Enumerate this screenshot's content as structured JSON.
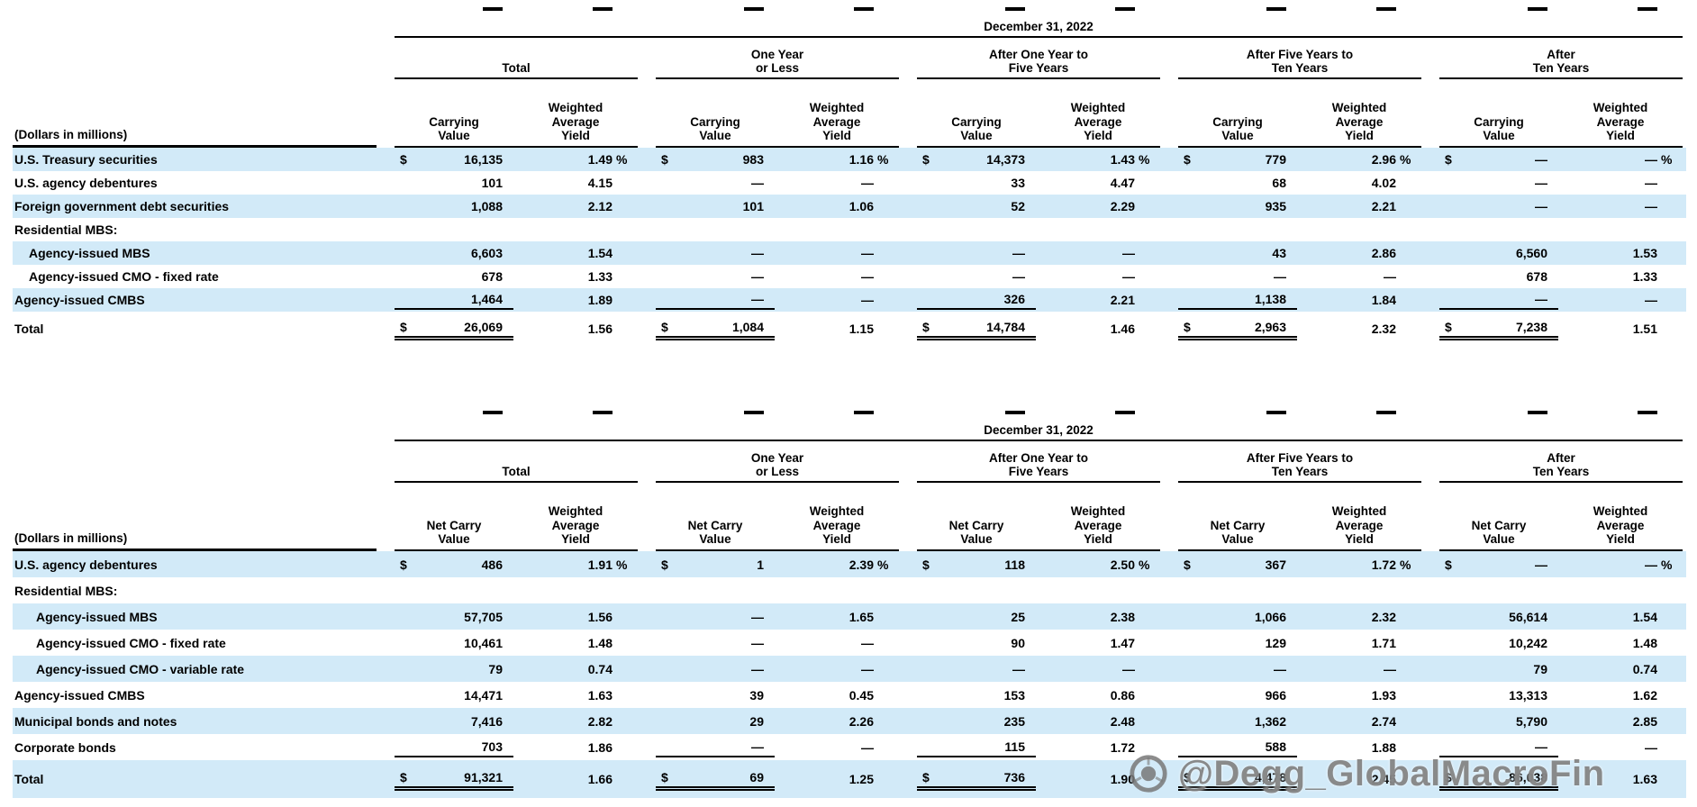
{
  "watermark": {
    "text": "@Degg_GlobalMacroFin",
    "logo": "camera-lens-icon"
  },
  "colors": {
    "row_shade": "#d2eaf8",
    "rule": "#000000",
    "watermark_gray": "#7a7a7a"
  },
  "tables": [
    {
      "name": "securities-maturities-carrying-value",
      "date": "December 31, 2022",
      "units_label": "(Dollars in millions)",
      "groups": [
        "Total",
        "One Year\nor Less",
        "After One Year to\nFive Years",
        "After Five Years to\nTen Years",
        "After\nTen Years"
      ],
      "value_header": "Carrying\nValue",
      "yield_header": "Weighted\nAverage\nYield",
      "rows": [
        {
          "label": "U.S. Treasury securities",
          "shade": true,
          "dollar": true,
          "pct": true,
          "values": [
            "16,135",
            "1.49",
            "983",
            "1.16",
            "14,373",
            "1.43",
            "779",
            "2.96",
            "—",
            "—"
          ]
        },
        {
          "label": "U.S. agency debentures",
          "values": [
            "101",
            "4.15",
            "—",
            "—",
            "33",
            "4.47",
            "68",
            "4.02",
            "—",
            "—"
          ]
        },
        {
          "label": "Foreign government debt securities",
          "shade": true,
          "values": [
            "1,088",
            "2.12",
            "101",
            "1.06",
            "52",
            "2.29",
            "935",
            "2.21",
            "—",
            "—"
          ]
        },
        {
          "label": "Residential MBS:",
          "section": true
        },
        {
          "label": "Agency-issued MBS",
          "indent": 1,
          "shade": true,
          "values": [
            "6,603",
            "1.54",
            "—",
            "—",
            "—",
            "—",
            "43",
            "2.86",
            "6,560",
            "1.53"
          ]
        },
        {
          "label": "Agency-issued CMO - fixed rate",
          "indent": 1,
          "values": [
            "678",
            "1.33",
            "—",
            "—",
            "—",
            "—",
            "—",
            "—",
            "678",
            "1.33"
          ]
        },
        {
          "label": "Agency-issued CMBS",
          "shade": true,
          "rule_below": true,
          "values": [
            "1,464",
            "1.89",
            "—",
            "—",
            "326",
            "2.21",
            "1,138",
            "1.84",
            "—",
            "—"
          ]
        },
        {
          "label": "Total",
          "total": true,
          "dollar": true,
          "values": [
            "26,069",
            "1.56",
            "1,084",
            "1.15",
            "14,784",
            "1.46",
            "2,963",
            "2.32",
            "7,238",
            "1.51"
          ]
        }
      ]
    },
    {
      "name": "securities-maturities-net-carry-value",
      "date": "December 31, 2022",
      "units_label": "(Dollars in millions)",
      "groups": [
        "Total",
        "One Year\nor Less",
        "After One Year to\nFive Years",
        "After Five Years to\nTen Years",
        "After\nTen Years"
      ],
      "value_header": "Net Carry\nValue",
      "yield_header": "Weighted\nAverage\nYield",
      "rows": [
        {
          "label": "U.S. agency debentures",
          "shade": true,
          "dollar": true,
          "pct": true,
          "values": [
            "486",
            "1.91",
            "1",
            "2.39",
            "118",
            "2.50",
            "367",
            "1.72",
            "—",
            "—"
          ]
        },
        {
          "label": "Residential MBS:",
          "section": true
        },
        {
          "label": "Agency-issued MBS",
          "indent": 1,
          "shade": true,
          "values": [
            "57,705",
            "1.56",
            "—",
            "1.65",
            "25",
            "2.38",
            "1,066",
            "2.32",
            "56,614",
            "1.54"
          ]
        },
        {
          "label": "Agency-issued CMO - fixed rate",
          "indent": 1,
          "values": [
            "10,461",
            "1.48",
            "—",
            "—",
            "90",
            "1.47",
            "129",
            "1.71",
            "10,242",
            "1.48"
          ]
        },
        {
          "label": "Agency-issued CMO - variable rate",
          "indent": 1,
          "shade": true,
          "values": [
            "79",
            "0.74",
            "—",
            "—",
            "—",
            "—",
            "—",
            "—",
            "79",
            "0.74"
          ]
        },
        {
          "label": "Agency-issued CMBS",
          "values": [
            "14,471",
            "1.63",
            "39",
            "0.45",
            "153",
            "0.86",
            "966",
            "1.93",
            "13,313",
            "1.62"
          ]
        },
        {
          "label": "Municipal bonds and notes",
          "shade": true,
          "values": [
            "7,416",
            "2.82",
            "29",
            "2.26",
            "235",
            "2.48",
            "1,362",
            "2.74",
            "5,790",
            "2.85"
          ]
        },
        {
          "label": "Corporate bonds",
          "rule_below": true,
          "values": [
            "703",
            "1.86",
            "—",
            "—",
            "115",
            "1.72",
            "588",
            "1.88",
            "—",
            "—"
          ]
        },
        {
          "label": "Total",
          "total": true,
          "shade": true,
          "dollar": true,
          "values": [
            "91,321",
            "1.66",
            "69",
            "1.25",
            "736",
            "1.90",
            "4,478",
            "2.45",
            "86,038",
            "1.63"
          ]
        }
      ]
    }
  ]
}
